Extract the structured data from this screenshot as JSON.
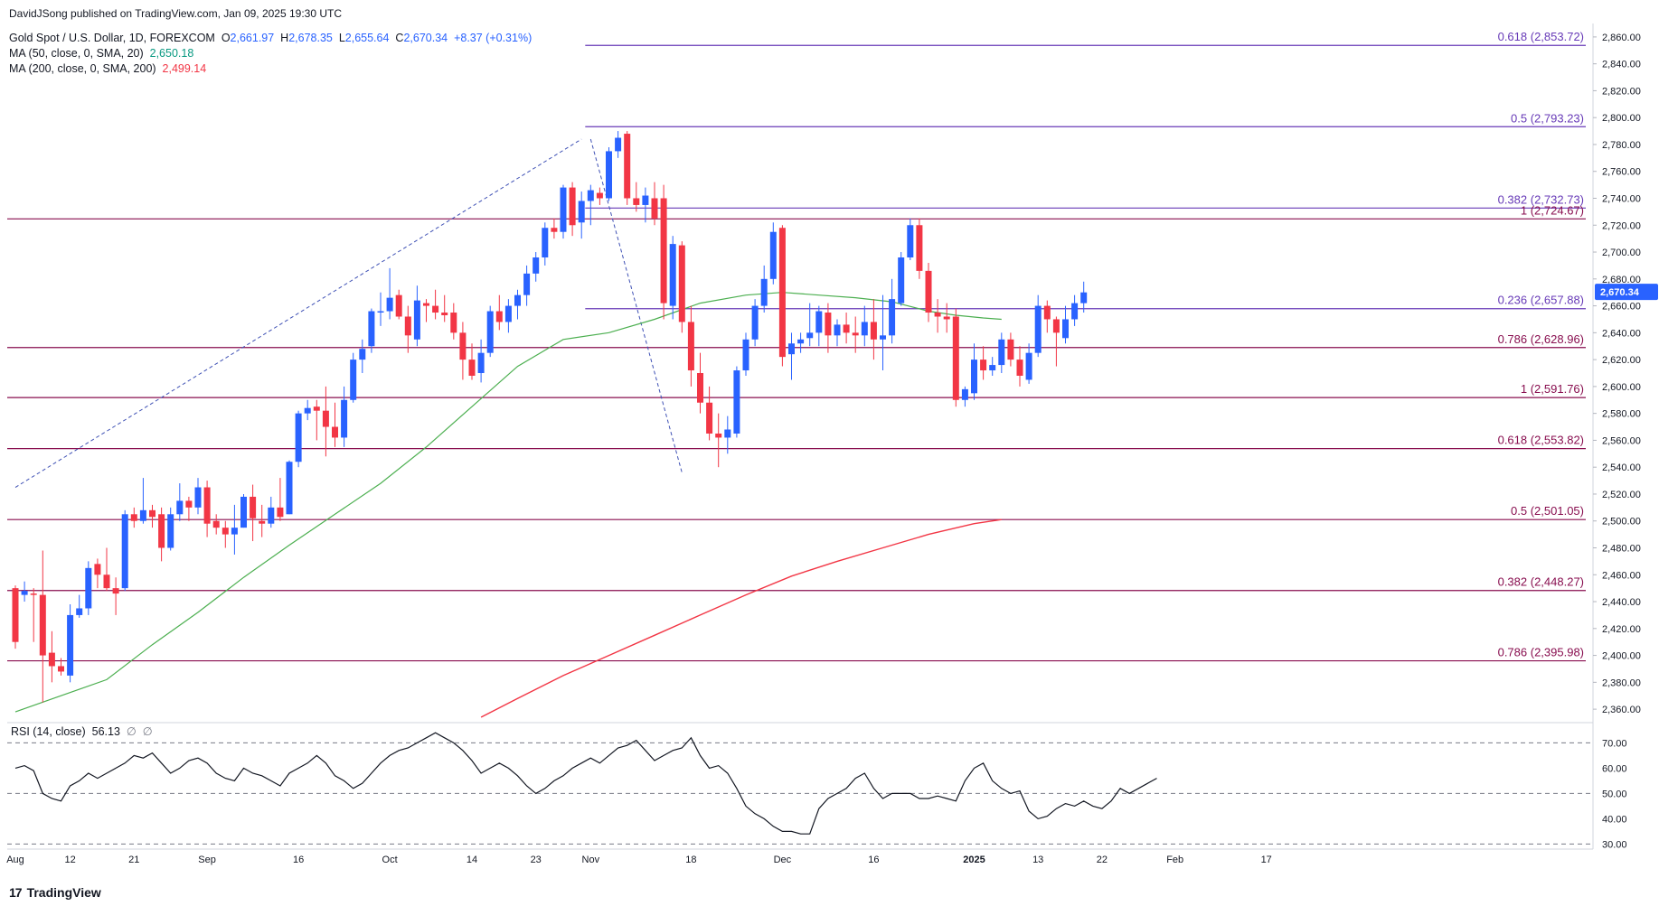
{
  "publisher": "DavidJSong published on TradingView.com, Jan 09, 2025 19:30 UTC",
  "legend": {
    "symbol": "Gold Spot / U.S. Dollar, 1D, FOREXCOM",
    "open_label": "O",
    "open": "2,661.97",
    "high_label": "H",
    "high": "2,678.35",
    "low_label": "L",
    "low": "2,655.64",
    "close_label": "C",
    "close": "2,670.34",
    "change": "+8.37 (+0.31%)",
    "ma50_label": "MA (50, close, 0, SMA, 20)",
    "ma50_value": "2,650.18",
    "ma200_label": "MA (200, close, 0, SMA, 200)",
    "ma200_value": "2,499.14"
  },
  "rsi_legend": {
    "label": "RSI (14, close)",
    "value": "56.13",
    "extra1": "∅",
    "extra2": "∅"
  },
  "footer": {
    "brand": "TradingView",
    "mark": "17"
  },
  "colors": {
    "up": "#2962ff",
    "down": "#f23645",
    "ma50": "#4caf50",
    "ma200": "#f23645",
    "fib_upper": "#673ab7",
    "fib_lower": "#880e4f",
    "rsi": "#131722"
  },
  "chart_data": {
    "type": "candlestick",
    "ylim": [
      2350,
      2870
    ],
    "price_ticks": [
      "2,360.00",
      "2,380.00",
      "2,400.00",
      "2,420.00",
      "2,440.00",
      "2,460.00",
      "2,480.00",
      "2,500.00",
      "2,520.00",
      "2,540.00",
      "2,560.00",
      "2,580.00",
      "2,600.00",
      "2,620.00",
      "2,640.00",
      "2,660.00",
      "2,680.00",
      "2,700.00",
      "2,720.00",
      "2,740.00",
      "2,760.00",
      "2,780.00",
      "2,800.00",
      "2,820.00",
      "2,840.00",
      "2,860.00"
    ],
    "current_price_label": "2,670.34",
    "x_ticks": [
      {
        "label": "Aug",
        "bar": 0
      },
      {
        "label": "12",
        "bar": 6
      },
      {
        "label": "21",
        "bar": 13
      },
      {
        "label": "Sep",
        "bar": 21
      },
      {
        "label": "16",
        "bar": 31
      },
      {
        "label": "Oct",
        "bar": 41
      },
      {
        "label": "14",
        "bar": 50
      },
      {
        "label": "23",
        "bar": 57
      },
      {
        "label": "Nov",
        "bar": 63
      },
      {
        "label": "18",
        "bar": 74
      },
      {
        "label": "Dec",
        "bar": 84
      },
      {
        "label": "16",
        "bar": 94
      },
      {
        "label": "2025",
        "bar": 105
      },
      {
        "label": "13",
        "bar": 112
      },
      {
        "label": "22",
        "bar": 119
      },
      {
        "label": "Feb",
        "bar": 127
      },
      {
        "label": "17",
        "bar": 137
      }
    ],
    "fib_levels": [
      {
        "label": "0.618 (2,853.72)",
        "value": 2853.72,
        "group": "upper"
      },
      {
        "label": "0.5 (2,793.23)",
        "value": 2793.23,
        "group": "upper"
      },
      {
        "label": "0.382 (2,732.73)",
        "value": 2732.73,
        "group": "upper"
      },
      {
        "label": "1 (2,724.67)",
        "value": 2724.67,
        "group": "lower"
      },
      {
        "label": "0.236 (2,657.88)",
        "value": 2657.88,
        "group": "upper"
      },
      {
        "label": "0.786 (2,628.96)",
        "value": 2628.96,
        "group": "lower"
      },
      {
        "label": "1 (2,591.76)",
        "value": 2591.76,
        "group": "lower"
      },
      {
        "label": "0.618 (2,553.82)",
        "value": 2553.82,
        "group": "lower"
      },
      {
        "label": "0.5 (2,501.05)",
        "value": 2501.05,
        "group": "lower"
      },
      {
        "label": "0.382 (2,448.27)",
        "value": 2448.27,
        "group": "lower"
      },
      {
        "label": "0.786 (2,395.98)",
        "value": 2395.98,
        "group": "lower"
      }
    ],
    "fib_anchor_bar": 63,
    "trend_lines": [
      {
        "from_bar": 0,
        "from_price": 2525,
        "to_bar": 62,
        "to_price": 2784
      },
      {
        "from_bar": 63,
        "from_price": 2784,
        "to_bar": 73,
        "to_price": 2536
      }
    ],
    "candles": [
      [
        2450,
        2452,
        2405,
        2410
      ],
      [
        2445,
        2455,
        2440,
        2448
      ],
      [
        2446,
        2450,
        2410,
        2445
      ],
      [
        2445,
        2478,
        2365,
        2400
      ],
      [
        2402,
        2418,
        2380,
        2392
      ],
      [
        2392,
        2398,
        2385,
        2388
      ],
      [
        2385,
        2438,
        2380,
        2430
      ],
      [
        2430,
        2445,
        2428,
        2435
      ],
      [
        2435,
        2470,
        2430,
        2465
      ],
      [
        2468,
        2472,
        2450,
        2460
      ],
      [
        2460,
        2480,
        2448,
        2450
      ],
      [
        2450,
        2458,
        2430,
        2446
      ],
      [
        2450,
        2508,
        2448,
        2505
      ],
      [
        2505,
        2510,
        2495,
        2500
      ],
      [
        2500,
        2532,
        2498,
        2508
      ],
      [
        2508,
        2512,
        2495,
        2503
      ],
      [
        2505,
        2510,
        2470,
        2480
      ],
      [
        2480,
        2510,
        2478,
        2505
      ],
      [
        2505,
        2528,
        2500,
        2515
      ],
      [
        2515,
        2518,
        2500,
        2510
      ],
      [
        2510,
        2532,
        2505,
        2525
      ],
      [
        2525,
        2530,
        2488,
        2498
      ],
      [
        2500,
        2505,
        2490,
        2495
      ],
      [
        2495,
        2500,
        2480,
        2490
      ],
      [
        2490,
        2512,
        2475,
        2495
      ],
      [
        2495,
        2520,
        2495,
        2518
      ],
      [
        2518,
        2527,
        2485,
        2502
      ],
      [
        2500,
        2512,
        2488,
        2498
      ],
      [
        2498,
        2518,
        2495,
        2510
      ],
      [
        2510,
        2532,
        2500,
        2503
      ],
      [
        2505,
        2545,
        2505,
        2544
      ],
      [
        2544,
        2582,
        2540,
        2580
      ],
      [
        2580,
        2590,
        2575,
        2584
      ],
      [
        2585,
        2590,
        2560,
        2582
      ],
      [
        2582,
        2600,
        2548,
        2570
      ],
      [
        2570,
        2588,
        2555,
        2562
      ],
      [
        2562,
        2600,
        2555,
        2590
      ],
      [
        2590,
        2625,
        2588,
        2620
      ],
      [
        2620,
        2635,
        2610,
        2628
      ],
      [
        2630,
        2658,
        2625,
        2656
      ],
      [
        2655,
        2670,
        2645,
        2656
      ],
      [
        2656,
        2688,
        2650,
        2666
      ],
      [
        2668,
        2672,
        2650,
        2652
      ],
      [
        2652,
        2660,
        2625,
        2638
      ],
      [
        2635,
        2675,
        2630,
        2664
      ],
      [
        2662,
        2665,
        2648,
        2660
      ],
      [
        2660,
        2672,
        2650,
        2655
      ],
      [
        2655,
        2668,
        2648,
        2653
      ],
      [
        2655,
        2662,
        2635,
        2640
      ],
      [
        2640,
        2648,
        2605,
        2620
      ],
      [
        2620,
        2632,
        2605,
        2608
      ],
      [
        2610,
        2635,
        2603,
        2625
      ],
      [
        2625,
        2660,
        2622,
        2656
      ],
      [
        2656,
        2668,
        2642,
        2648
      ],
      [
        2648,
        2665,
        2640,
        2660
      ],
      [
        2660,
        2672,
        2650,
        2668
      ],
      [
        2668,
        2690,
        2660,
        2684
      ],
      [
        2684,
        2700,
        2678,
        2696
      ],
      [
        2696,
        2722,
        2690,
        2718
      ],
      [
        2718,
        2725,
        2710,
        2715
      ],
      [
        2715,
        2750,
        2710,
        2748
      ],
      [
        2748,
        2752,
        2712,
        2720
      ],
      [
        2722,
        2745,
        2710,
        2738
      ],
      [
        2738,
        2750,
        2720,
        2746
      ],
      [
        2744,
        2748,
        2735,
        2740
      ],
      [
        2740,
        2778,
        2738,
        2775
      ],
      [
        2775,
        2790,
        2770,
        2785
      ],
      [
        2788,
        2790,
        2735,
        2740
      ],
      [
        2740,
        2752,
        2730,
        2735
      ],
      [
        2735,
        2748,
        2722,
        2742
      ],
      [
        2740,
        2752,
        2720,
        2725
      ],
      [
        2740,
        2750,
        2650,
        2662
      ],
      [
        2660,
        2712,
        2650,
        2706
      ],
      [
        2705,
        2708,
        2640,
        2648
      ],
      [
        2648,
        2660,
        2600,
        2612
      ],
      [
        2610,
        2625,
        2580,
        2588
      ],
      [
        2588,
        2600,
        2560,
        2565
      ],
      [
        2565,
        2580,
        2540,
        2562
      ],
      [
        2562,
        2578,
        2550,
        2568
      ],
      [
        2565,
        2615,
        2562,
        2612
      ],
      [
        2612,
        2640,
        2608,
        2635
      ],
      [
        2635,
        2665,
        2630,
        2660
      ],
      [
        2660,
        2690,
        2655,
        2680
      ],
      [
        2680,
        2722,
        2676,
        2715
      ],
      [
        2718,
        2720,
        2615,
        2622
      ],
      [
        2624,
        2640,
        2605,
        2632
      ],
      [
        2632,
        2640,
        2625,
        2635
      ],
      [
        2636,
        2662,
        2630,
        2640
      ],
      [
        2640,
        2660,
        2630,
        2656
      ],
      [
        2655,
        2662,
        2625,
        2638
      ],
      [
        2638,
        2650,
        2630,
        2646
      ],
      [
        2646,
        2655,
        2632,
        2640
      ],
      [
        2640,
        2652,
        2625,
        2638
      ],
      [
        2638,
        2660,
        2630,
        2648
      ],
      [
        2648,
        2665,
        2620,
        2635
      ],
      [
        2635,
        2668,
        2612,
        2638
      ],
      [
        2638,
        2680,
        2632,
        2665
      ],
      [
        2662,
        2700,
        2660,
        2696
      ],
      [
        2696,
        2725,
        2694,
        2720
      ],
      [
        2720,
        2725,
        2680,
        2686
      ],
      [
        2686,
        2692,
        2648,
        2655
      ],
      [
        2655,
        2665,
        2640,
        2652
      ],
      [
        2652,
        2662,
        2640,
        2650
      ],
      [
        2652,
        2658,
        2585,
        2590
      ],
      [
        2590,
        2600,
        2585,
        2598
      ],
      [
        2595,
        2632,
        2590,
        2620
      ],
      [
        2620,
        2630,
        2605,
        2612
      ],
      [
        2612,
        2622,
        2608,
        2616
      ],
      [
        2616,
        2640,
        2610,
        2635
      ],
      [
        2635,
        2640,
        2615,
        2620
      ],
      [
        2620,
        2630,
        2600,
        2608
      ],
      [
        2605,
        2632,
        2602,
        2625
      ],
      [
        2625,
        2668,
        2622,
        2660
      ],
      [
        2660,
        2664,
        2640,
        2650
      ],
      [
        2650,
        2652,
        2615,
        2640
      ],
      [
        2636,
        2660,
        2632,
        2650
      ],
      [
        2650,
        2668,
        2645,
        2662
      ],
      [
        2662,
        2678,
        2655,
        2670
      ]
    ],
    "ma50": [
      [
        0,
        2358
      ],
      [
        5,
        2370
      ],
      [
        10,
        2382
      ],
      [
        15,
        2408
      ],
      [
        20,
        2432
      ],
      [
        25,
        2458
      ],
      [
        30,
        2482
      ],
      [
        35,
        2505
      ],
      [
        40,
        2528
      ],
      [
        45,
        2555
      ],
      [
        50,
        2585
      ],
      [
        55,
        2615
      ],
      [
        60,
        2635
      ],
      [
        65,
        2640
      ],
      [
        70,
        2650
      ],
      [
        75,
        2662
      ],
      [
        80,
        2668
      ],
      [
        84,
        2670
      ],
      [
        88,
        2668
      ],
      [
        92,
        2666
      ],
      [
        96,
        2663
      ],
      [
        100,
        2656
      ],
      [
        103,
        2653
      ],
      [
        106,
        2651
      ],
      [
        108,
        2650
      ]
    ],
    "ma200": [
      [
        51,
        2354
      ],
      [
        55,
        2368
      ],
      [
        60,
        2385
      ],
      [
        65,
        2400
      ],
      [
        70,
        2415
      ],
      [
        75,
        2430
      ],
      [
        80,
        2445
      ],
      [
        85,
        2459
      ],
      [
        90,
        2470
      ],
      [
        95,
        2480
      ],
      [
        100,
        2490
      ],
      [
        105,
        2498
      ],
      [
        108,
        2501
      ]
    ],
    "rsi": {
      "ylim": [
        28,
        78
      ],
      "ticks": [
        "30.00",
        "40.00",
        "50.00",
        "60.00",
        "70.00"
      ],
      "levels": [
        70,
        50,
        30
      ],
      "values": [
        60,
        61,
        59,
        50,
        48,
        47,
        53,
        55,
        58,
        56,
        58,
        60,
        62,
        65,
        64,
        66,
        62,
        58,
        60,
        63,
        64,
        62,
        58,
        56,
        55,
        60,
        58,
        57,
        55,
        53,
        58,
        60,
        62,
        65,
        62,
        57,
        55,
        52,
        54,
        58,
        62,
        65,
        67,
        68,
        70,
        72,
        74,
        72,
        70,
        67,
        63,
        58,
        60,
        62,
        60,
        57,
        53,
        50,
        52,
        55,
        57,
        60,
        62,
        64,
        62,
        65,
        68,
        69,
        71,
        67,
        63,
        65,
        67,
        68,
        72,
        65,
        60,
        61,
        58,
        52,
        45,
        42,
        40,
        37,
        35,
        35,
        34,
        34,
        44,
        48,
        50,
        52,
        56,
        58,
        52,
        48,
        50,
        50,
        50,
        48,
        48,
        49,
        48,
        47,
        55,
        60,
        62,
        55,
        52,
        50,
        51,
        43,
        40,
        41,
        44,
        46,
        45,
        47,
        45,
        44,
        47,
        52,
        50,
        52,
        54,
        56
      ]
    }
  }
}
